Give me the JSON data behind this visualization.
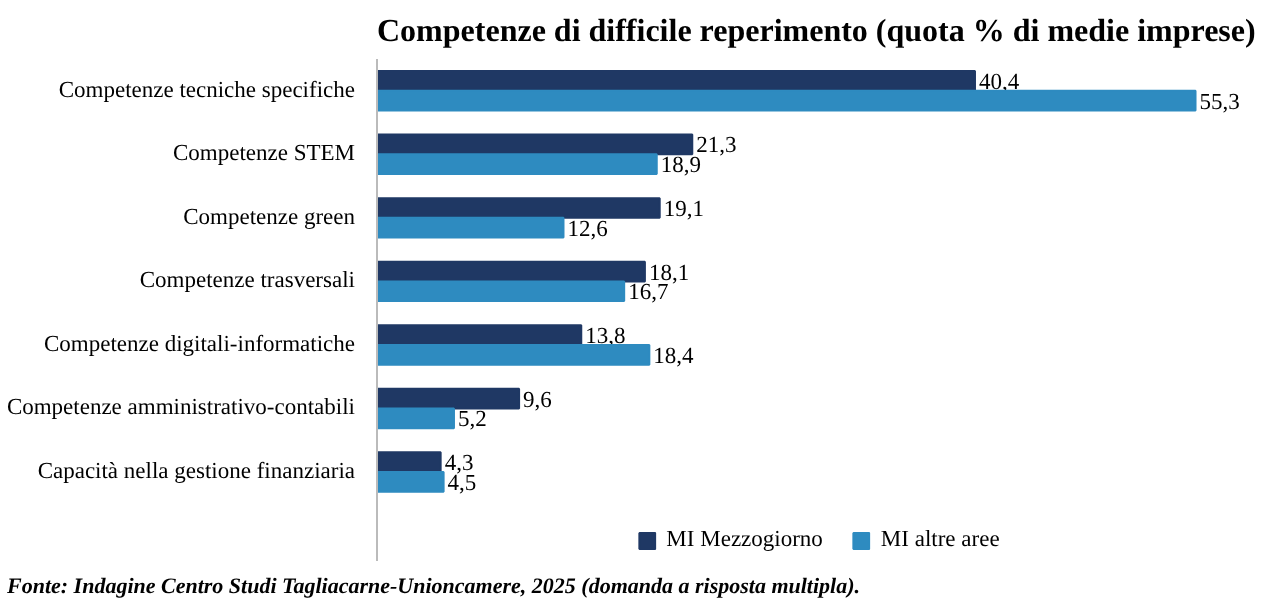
{
  "chart_data": {
    "type": "bar",
    "orientation": "horizontal",
    "title": "Competenze di difficile reperimento (quota % di medie imprese)",
    "categories": [
      "Competenze tecniche specifiche",
      "Competenze STEM",
      "Competenze green",
      "Competenze trasversali",
      "Competenze digitali-informatiche",
      "Competenze amministrativo-contabili",
      "Capacità nella gestione finanziaria"
    ],
    "series": [
      {
        "name": "MI Mezzogiorno",
        "color": "#1f3864",
        "values": [
          40.4,
          21.3,
          19.1,
          18.1,
          13.8,
          9.6,
          4.3
        ],
        "value_labels": [
          "40,4",
          "21,3",
          "19,1",
          "18,1",
          "13,8",
          "9,6",
          "4,3"
        ]
      },
      {
        "name": "MI altre aree",
        "color": "#2e8bc0",
        "values": [
          55.3,
          18.9,
          12.6,
          16.7,
          18.4,
          5.2,
          4.5
        ],
        "value_labels": [
          "55,3",
          "18,9",
          "12,6",
          "16,7",
          "18,4",
          "5,2",
          "4,5"
        ]
      }
    ],
    "tick_labels": "y",
    "grid": false,
    "legend": "bottom",
    "annotations": [
      "Fonte: Indagine Centro Studi Tagliacarne-Unioncamere, 2025 (domanda a risposta multipla)."
    ]
  }
}
